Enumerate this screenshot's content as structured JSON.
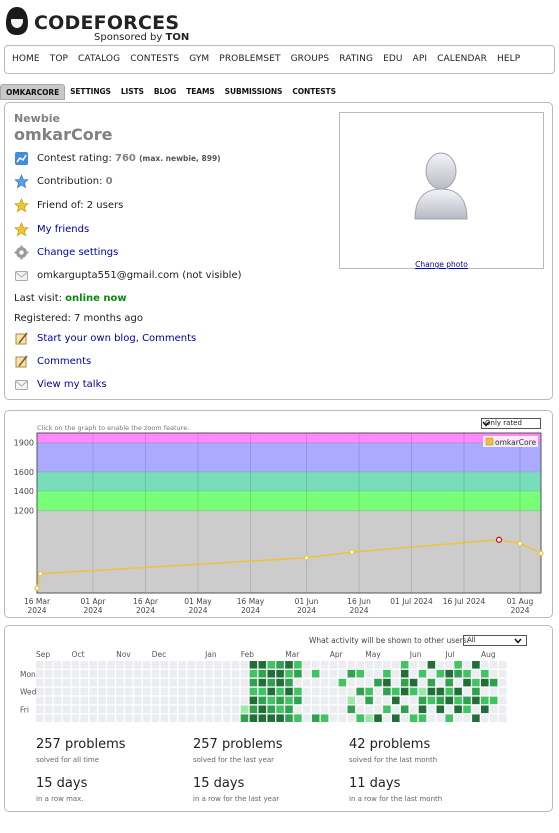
{
  "logo": {
    "brand": "CODEFORCES",
    "sponsor_prefix": "Sponsored by",
    "sponsor_name": "TON"
  },
  "top_menu": [
    "HOME",
    "TOP",
    "CATALOG",
    "CONTESTS",
    "GYM",
    "PROBLEMSET",
    "GROUPS",
    "RATING",
    "EDU",
    "API",
    "CALENDAR",
    "HELP"
  ],
  "second_menu": [
    "OMKARCORE",
    "SETTINGS",
    "LISTS",
    "BLOG",
    "TEAMS",
    "SUBMISSIONS",
    "CONTESTS"
  ],
  "profile": {
    "rank": "Newbie",
    "handle": "omkarCore",
    "contest_rating_label": "Contest rating:",
    "contest_rating_value": "760",
    "contest_rating_max": "(max. newbie, 899)",
    "contribution_label": "Contribution:",
    "contribution_value": "0",
    "friend_of": "Friend of: 2 users",
    "my_friends": "My friends",
    "change_settings": "Change settings",
    "email": "omkargupta551@gmail.com (not visible)",
    "last_visit_label": "Last visit:",
    "last_visit_value": "online now",
    "registered": "Registered: 7 months ago",
    "start_blog": "Start your own blog",
    "comma": ",",
    "comments_inline": "Comments",
    "comments": "Comments",
    "view_talks": "View my talks",
    "change_photo": "Change photo"
  },
  "colors": {
    "newbie_gray": "#808080",
    "band_pink": "#ff88ff",
    "band_violet": "#aaaaff",
    "band_cyan": "#77ddbb",
    "band_green": "#77ff77",
    "band_gray": "#cccccc",
    "line_gold": "#edc240",
    "heat_0": "#ebedf0",
    "heat_1": "#9be9a8",
    "heat_2": "#40c463",
    "heat_3": "#30a14e",
    "heat_4": "#216e39"
  },
  "graph": {
    "hint": "Click on the graph to enable the zoom feature.",
    "select": "Only rated",
    "legend": "omkarCore"
  },
  "chart_data": {
    "type": "line",
    "series": [
      {
        "name": "omkarCore",
        "points": [
          {
            "x": "2024-03-16",
            "y": 400
          },
          {
            "x": "2024-03-17",
            "y": 549
          },
          {
            "x": "2024-06-01",
            "y": 713
          },
          {
            "x": "2024-06-14",
            "y": 772
          },
          {
            "x": "2024-07-26",
            "y": 899
          },
          {
            "x": "2024-08-01",
            "y": 861
          },
          {
            "x": "2024-08-07",
            "y": 760
          }
        ]
      }
    ],
    "xlim": [
      "2024-03-16",
      "2024-08-07"
    ],
    "ylim": [
      350,
      2000
    ],
    "y_ticks": [
      1200,
      1400,
      1600,
      1900
    ],
    "x_ticks": [
      {
        "x": "2024-03-16",
        "line1": "16 Mar",
        "line2": "2024"
      },
      {
        "x": "2024-04-01",
        "line1": "01 Apr",
        "line2": "2024"
      },
      {
        "x": "2024-04-16",
        "line1": "16 Apr",
        "line2": "2024"
      },
      {
        "x": "2024-05-01",
        "line1": "01 May",
        "line2": "2024"
      },
      {
        "x": "2024-05-16",
        "line1": "16 May",
        "line2": "2024"
      },
      {
        "x": "2024-06-01",
        "line1": "01 Jun",
        "line2": "2024"
      },
      {
        "x": "2024-06-16",
        "line1": "16 Jun",
        "line2": "2024"
      },
      {
        "x": "2024-07-01",
        "line1": "01 Jul 2024",
        "line2": ""
      },
      {
        "x": "2024-07-16",
        "line1": "16 Jul 2024",
        "line2": ""
      },
      {
        "x": "2024-08-01",
        "line1": "01 Aug",
        "line2": "2024"
      }
    ],
    "rating_bands": [
      {
        "from": 1900,
        "to": 2100,
        "color": "#ff88ff"
      },
      {
        "from": 1600,
        "to": 1900,
        "color": "#aaaaff"
      },
      {
        "from": 1400,
        "to": 1600,
        "color": "#77ddbb"
      },
      {
        "from": 1200,
        "to": 1400,
        "color": "#77ff77"
      },
      {
        "from": 0,
        "to": 1200,
        "color": "#cccccc"
      }
    ],
    "max_point_index": 4,
    "grid": true,
    "legend_position": "top-right"
  },
  "activity": {
    "question": "What activity will be shown to other users:",
    "select": "All",
    "months": [
      "Sep",
      "Oct",
      "Nov",
      "Dec",
      "Jan",
      "Feb",
      "Mar",
      "Apr",
      "May",
      "Jun",
      "Jul",
      "Aug"
    ],
    "days": [
      "Mon",
      "Wed",
      "Fri"
    ],
    "heatmap_levels": [
      [
        0,
        0,
        0,
        0,
        0,
        0,
        0
      ],
      [
        0,
        0,
        0,
        0,
        0,
        0,
        0
      ],
      [
        0,
        0,
        0,
        0,
        0,
        0,
        0
      ],
      [
        0,
        0,
        0,
        0,
        0,
        0,
        0
      ],
      [
        0,
        0,
        0,
        0,
        0,
        0,
        0
      ],
      [
        0,
        0,
        0,
        0,
        0,
        0,
        0
      ],
      [
        0,
        0,
        0,
        0,
        0,
        0,
        0
      ],
      [
        0,
        0,
        0,
        0,
        0,
        0,
        0
      ],
      [
        0,
        0,
        0,
        0,
        0,
        0,
        0
      ],
      [
        0,
        0,
        0,
        0,
        0,
        0,
        0
      ],
      [
        0,
        0,
        0,
        0,
        0,
        0,
        0
      ],
      [
        0,
        0,
        0,
        0,
        0,
        0,
        0
      ],
      [
        0,
        0,
        0,
        0,
        0,
        0,
        0
      ],
      [
        0,
        0,
        0,
        0,
        0,
        0,
        0
      ],
      [
        0,
        0,
        0,
        0,
        0,
        0,
        0
      ],
      [
        0,
        0,
        0,
        0,
        0,
        0,
        0
      ],
      [
        0,
        0,
        0,
        0,
        0,
        0,
        0
      ],
      [
        0,
        0,
        0,
        0,
        0,
        0,
        0
      ],
      [
        0,
        0,
        0,
        0,
        0,
        0,
        0
      ],
      [
        0,
        0,
        0,
        0,
        0,
        0,
        0
      ],
      [
        0,
        0,
        0,
        0,
        0,
        0,
        0
      ],
      [
        0,
        0,
        0,
        0,
        0,
        0,
        0
      ],
      [
        0,
        0,
        0,
        0,
        0,
        0,
        0
      ],
      [
        0,
        0,
        0,
        0,
        0,
        1,
        3
      ],
      [
        4,
        2,
        3,
        2,
        4,
        3,
        4
      ],
      [
        4,
        3,
        4,
        2,
        3,
        4,
        4
      ],
      [
        2,
        4,
        3,
        4,
        2,
        3,
        4
      ],
      [
        3,
        4,
        4,
        2,
        3,
        2,
        4
      ],
      [
        4,
        2,
        3,
        4,
        2,
        3,
        3
      ],
      [
        2,
        3,
        0,
        2,
        3,
        0,
        2
      ],
      [
        0,
        0,
        0,
        0,
        0,
        0,
        0
      ],
      [
        0,
        2,
        0,
        0,
        0,
        0,
        3
      ],
      [
        0,
        0,
        0,
        0,
        0,
        0,
        2
      ],
      [
        0,
        0,
        0,
        0,
        0,
        0,
        0
      ],
      [
        0,
        0,
        2,
        0,
        0,
        0,
        0
      ],
      [
        0,
        3,
        0,
        0,
        1,
        3,
        0
      ],
      [
        0,
        2,
        0,
        3,
        0,
        0,
        2
      ],
      [
        0,
        0,
        0,
        2,
        3,
        0,
        1
      ],
      [
        0,
        0,
        3,
        0,
        0,
        0,
        4
      ],
      [
        0,
        2,
        4,
        3,
        0,
        2,
        0
      ],
      [
        0,
        0,
        0,
        2,
        4,
        0,
        4
      ],
      [
        2,
        4,
        3,
        4,
        0,
        3,
        0
      ],
      [
        0,
        0,
        4,
        2,
        0,
        0,
        2
      ],
      [
        0,
        2,
        0,
        1,
        3,
        4,
        2
      ],
      [
        4,
        0,
        3,
        4,
        2,
        0,
        0
      ],
      [
        0,
        2,
        0,
        4,
        3,
        4,
        0
      ],
      [
        0,
        4,
        3,
        2,
        4,
        0,
        2
      ],
      [
        2,
        3,
        0,
        4,
        2,
        4,
        0
      ],
      [
        0,
        2,
        4,
        0,
        3,
        2,
        0
      ],
      [
        4,
        0,
        2,
        3,
        4,
        0,
        4
      ],
      [
        0,
        2,
        4,
        0,
        2,
        4,
        0
      ],
      [
        0,
        0,
        3,
        0,
        2,
        0,
        0
      ],
      [
        0,
        0,
        0,
        0,
        0,
        0,
        0
      ]
    ],
    "stats": [
      {
        "big": "257 problems",
        "sub": "solved for all time"
      },
      {
        "big": "257 problems",
        "sub": "solved for the last year"
      },
      {
        "big": "42 problems",
        "sub": "solved for the last month"
      },
      {
        "big": "15 days",
        "sub": "in a row max."
      },
      {
        "big": "15 days",
        "sub": "in a row for the last year"
      },
      {
        "big": "11 days",
        "sub": "in a row for the last month"
      }
    ]
  }
}
